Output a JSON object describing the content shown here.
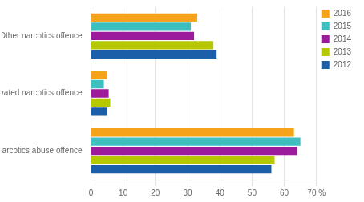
{
  "chart_data": {
    "type": "bar",
    "orientation": "horizontal",
    "categories": [
      "Narcotics abuse offence",
      "Aggravated narcotics offence",
      "Other narcotics offence"
    ],
    "series": [
      {
        "name": "2016",
        "color": "#f5a31a",
        "values": [
          63,
          5,
          33
        ]
      },
      {
        "name": "2015",
        "color": "#3dbfbf",
        "values": [
          65,
          4,
          31
        ]
      },
      {
        "name": "2014",
        "color": "#9b1b9b",
        "values": [
          64,
          5.5,
          32
        ]
      },
      {
        "name": "2013",
        "color": "#b5c800",
        "values": [
          57,
          6,
          38
        ]
      },
      {
        "name": "2012",
        "color": "#1a5fa8",
        "values": [
          56,
          5,
          39
        ]
      }
    ],
    "xlim": [
      0,
      70
    ],
    "xticks": [
      0,
      10,
      20,
      30,
      40,
      50,
      60,
      {
        "value": 70,
        "label": "70 %"
      }
    ],
    "grid": true,
    "legend": "right"
  }
}
